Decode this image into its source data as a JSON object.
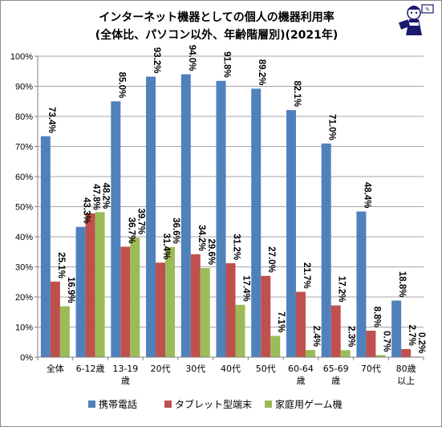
{
  "chart_data": {
    "type": "bar",
    "title": [
      "インターネット機器としての個人の機器利用率",
      "(全体比、パソコン以外、年齢階層別)(2021年)"
    ],
    "categories": [
      [
        "全体"
      ],
      [
        "6-12歳"
      ],
      [
        "13-19",
        "歳"
      ],
      [
        "20代"
      ],
      [
        "30代"
      ],
      [
        "40代"
      ],
      [
        "50代"
      ],
      [
        "60-64",
        "歳"
      ],
      [
        "65-69",
        "歳"
      ],
      [
        "70代"
      ],
      [
        "80歳",
        "以上"
      ]
    ],
    "series": [
      {
        "name": "携帯電話",
        "color": "#4f81bd",
        "values": [
          73.4,
          43.3,
          85.0,
          93.2,
          94.0,
          91.8,
          89.2,
          82.1,
          71.0,
          48.4,
          18.8
        ]
      },
      {
        "name": "タブレット型端末",
        "color": "#c0504d",
        "values": [
          25.1,
          47.8,
          36.7,
          31.4,
          34.2,
          31.2,
          27.0,
          21.7,
          17.2,
          8.8,
          2.7
        ]
      },
      {
        "name": "家庭用ゲーム機",
        "color": "#9bbb59",
        "values": [
          16.9,
          48.2,
          39.7,
          36.6,
          29.6,
          17.4,
          7.1,
          2.4,
          2.3,
          0.7,
          0.2
        ]
      }
    ],
    "ylim": [
      0,
      100
    ],
    "yticks": [
      "0%",
      "10%",
      "20%",
      "30%",
      "40%",
      "50%",
      "60%",
      "70%",
      "80%",
      "90%",
      "100%"
    ],
    "grid": true,
    "legend": "bottom"
  },
  "icon": "mascot-logo-icon"
}
